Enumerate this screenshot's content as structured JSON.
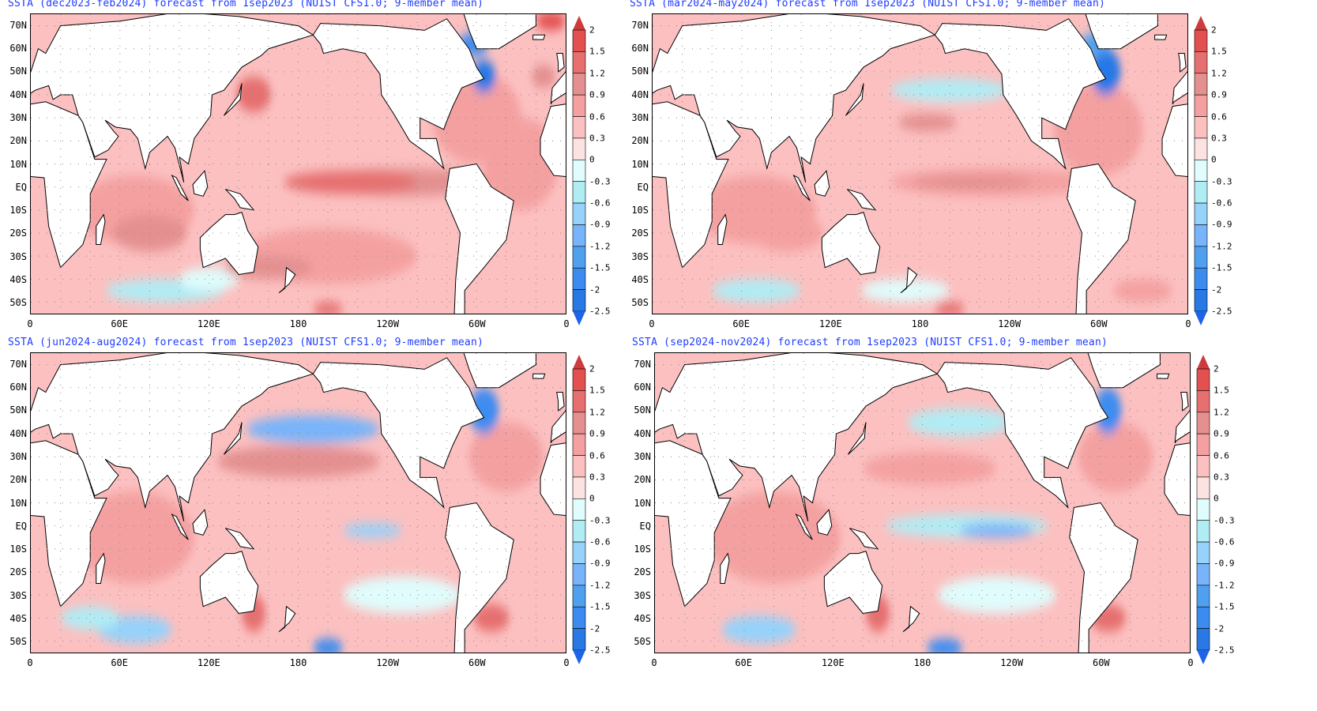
{
  "panels": [
    {
      "title": "SSTA (dec2023-feb2024) forecast from 1sep2023 (NUIST CFS1.0; 9-member mean)"
    },
    {
      "title": "SSTA (mar2024-may2024) forecast from 1sep2023 (NUIST CFS1.0; 9-member mean)"
    },
    {
      "title": "SSTA (jun2024-aug2024) forecast from 1sep2023 (NUIST CFS1.0; 9-member mean)"
    },
    {
      "title": "SSTA (sep2024-nov2024) forecast from 1sep2023 (NUIST CFS1.0; 9-member mean)"
    }
  ],
  "lat_labels": [
    "70N",
    "60N",
    "50N",
    "40N",
    "30N",
    "20N",
    "10N",
    "EQ",
    "10S",
    "20S",
    "30S",
    "40S",
    "50S"
  ],
  "lon_labels": [
    "0",
    "60E",
    "120E",
    "180",
    "120W",
    "60W",
    "0"
  ],
  "colorbar": {
    "levels": [
      "2",
      "1.5",
      "1.2",
      "0.9",
      "0.6",
      "0.3",
      "0",
      "-0.3",
      "-0.6",
      "-0.9",
      "-1.2",
      "-1.5",
      "-2",
      "-2.5"
    ],
    "colors": [
      "#cc3c3c",
      "#e35050",
      "#e67070",
      "#e49090",
      "#f4a0a0",
      "#fcc0c0",
      "#fde2e2",
      "#e0fcfc",
      "#b0ecf4",
      "#96d2fa",
      "#78b4fa",
      "#50a0f0",
      "#3c8cf0",
      "#2878e6",
      "#1e64e6"
    ]
  }
}
